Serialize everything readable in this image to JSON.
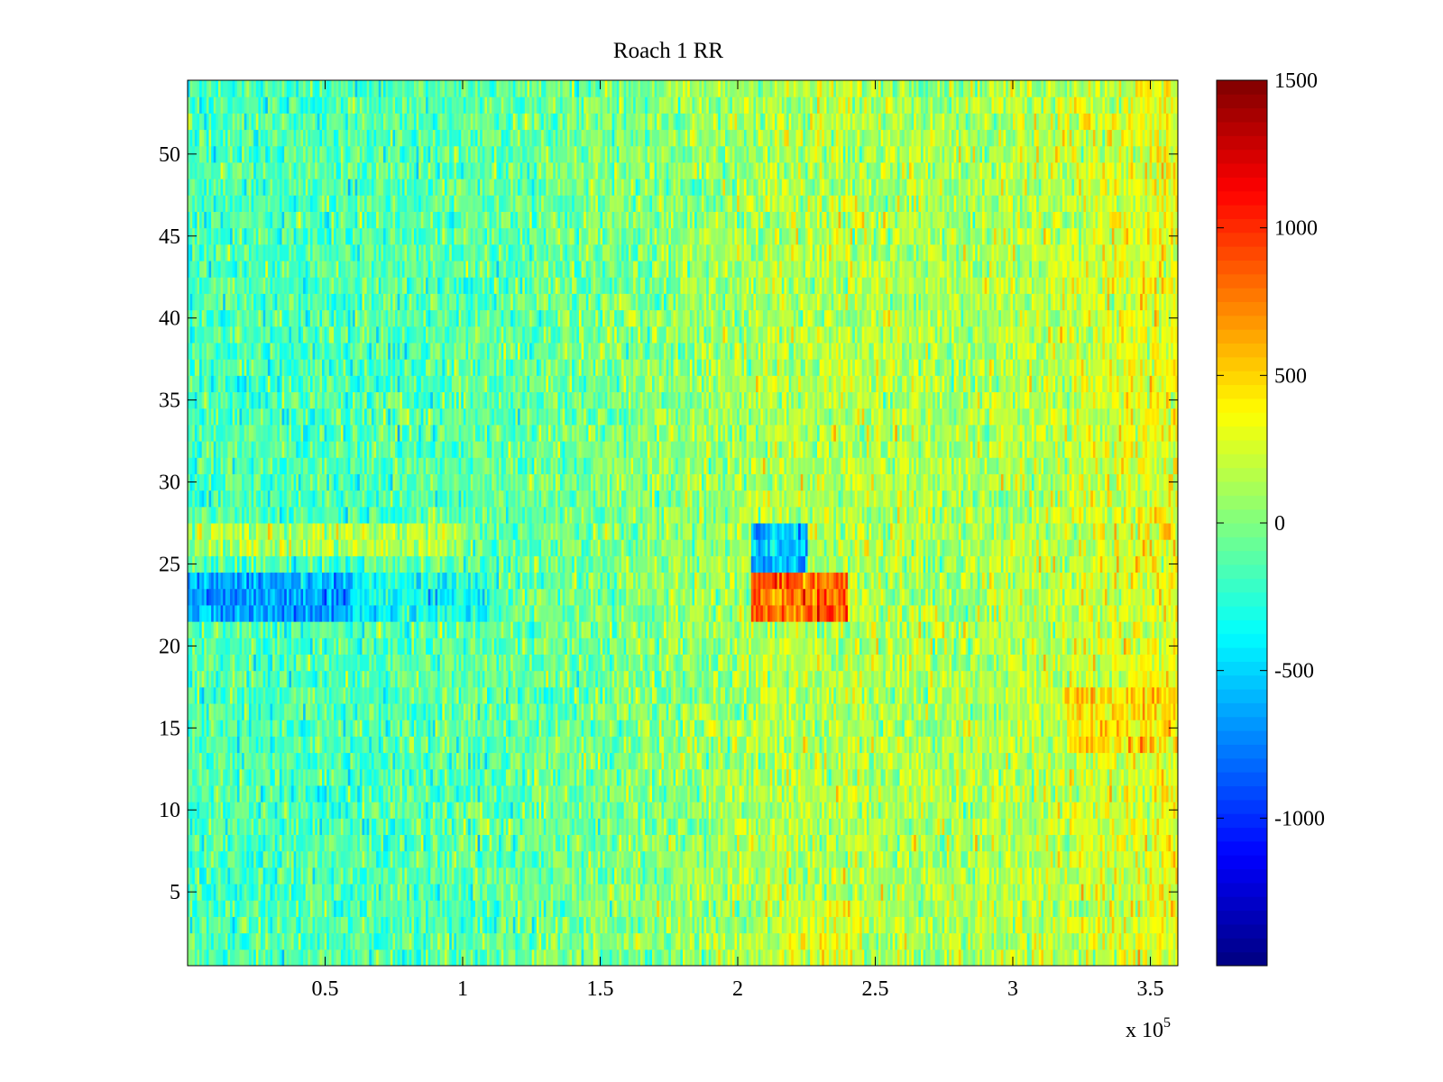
{
  "chart_data": {
    "type": "heatmap",
    "title": "Roach 1 RR",
    "colormap": "jet",
    "x": {
      "range": [
        0,
        360000
      ],
      "ticks": [
        50000,
        100000,
        150000,
        200000,
        250000,
        300000,
        350000
      ],
      "tick_labels": [
        "0.5",
        "1",
        "1.5",
        "2",
        "2.5",
        "3",
        "3.5"
      ],
      "exponent_label": {
        "base": "x 10",
        "power": "5"
      }
    },
    "y": {
      "range": [
        0.5,
        54.5
      ],
      "ticks": [
        5,
        10,
        15,
        20,
        25,
        30,
        35,
        40,
        45,
        50
      ],
      "tick_labels": [
        "5",
        "10",
        "15",
        "20",
        "25",
        "30",
        "35",
        "40",
        "45",
        "50"
      ]
    },
    "colorbar": {
      "range": [
        -1500,
        1500
      ],
      "ticks": [
        -1000,
        -500,
        0,
        500,
        1000,
        1500
      ],
      "tick_labels": [
        "-1000",
        "-500",
        "0",
        "500",
        "1000",
        "1500"
      ]
    },
    "rows": 54,
    "x_max": 360000,
    "trend": [
      {
        "x": 0,
        "v": -150
      },
      {
        "x": 60000,
        "v": -150
      },
      {
        "x": 120000,
        "v": -80
      },
      {
        "x": 180000,
        "v": 40
      },
      {
        "x": 210000,
        "v": 140
      },
      {
        "x": 240000,
        "v": 160
      },
      {
        "x": 280000,
        "v": 110
      },
      {
        "x": 320000,
        "v": 200
      },
      {
        "x": 360000,
        "v": 330
      }
    ],
    "features": [
      {
        "y": [
          21.5,
          24.5
        ],
        "x": [
          0,
          60000
        ],
        "v": -650
      },
      {
        "y": [
          21.5,
          24.5
        ],
        "x": [
          60000,
          110000
        ],
        "v": -350
      },
      {
        "y": [
          21.5,
          24.5
        ],
        "x": [
          205000,
          240000
        ],
        "v": 850
      },
      {
        "y": [
          24.5,
          27.5
        ],
        "x": [
          205000,
          225000
        ],
        "v": -550
      },
      {
        "y": [
          25.5,
          27.5
        ],
        "x": [
          0,
          100000
        ],
        "v": 150
      },
      {
        "y": [
          13.5,
          17.5
        ],
        "x": [
          320000,
          360000
        ],
        "v": 450
      },
      {
        "y": [
          0.5,
          4.5
        ],
        "x": [
          215000,
          245000
        ],
        "v": 260
      }
    ]
  }
}
